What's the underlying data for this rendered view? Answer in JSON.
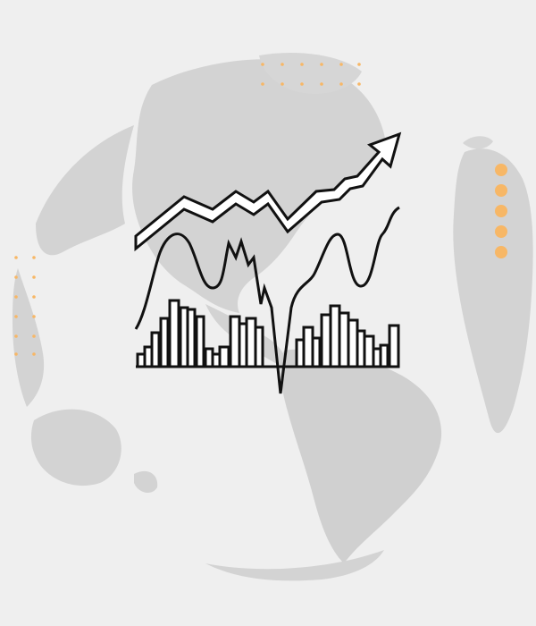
{
  "colors": {
    "background": "#efefef",
    "globe": "#d3d3d3",
    "globe_edge": "#c9c9c9",
    "accent": "#f7b766",
    "ink": "#111111",
    "paper": "#ffffff"
  },
  "icons": [
    "globe-illustration",
    "trend-arrow-icon",
    "wave-line-icon",
    "bar-chart-icon",
    "decorative-dots"
  ]
}
